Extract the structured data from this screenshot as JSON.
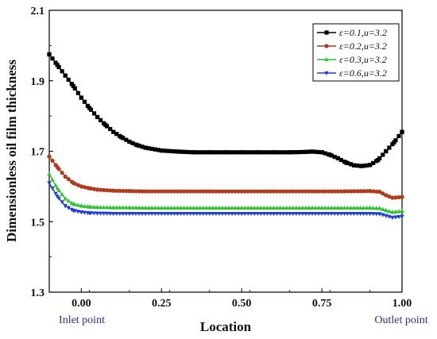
{
  "chart_data": {
    "type": "line",
    "title": "",
    "xlabel": "Location",
    "ylabel": "Dimensionless oil film thickness",
    "xlim": [
      -0.1,
      1.0
    ],
    "ylim": [
      1.3,
      2.1
    ],
    "xticks": [
      "0.00",
      "0.25",
      "0.50",
      "0.75",
      "1.00"
    ],
    "xtick_values": [
      0.0,
      0.25,
      0.5,
      0.75,
      1.0
    ],
    "yticks": [
      "1.3",
      "1.5",
      "1.7",
      "1.9",
      "2.1"
    ],
    "ytick_values": [
      1.3,
      1.5,
      1.7,
      1.9,
      2.1
    ],
    "grid": false,
    "legend_position": "top-right",
    "annotations": [
      {
        "text": "Inlet point",
        "x": 0.0
      },
      {
        "text": "Outlet point",
        "x": 1.0
      }
    ],
    "series": [
      {
        "name": "ε=0.1,u=3.2",
        "color": "#000000",
        "marker": "square",
        "x": [
          -0.1,
          -0.075,
          -0.05,
          -0.025,
          0.0,
          0.025,
          0.05,
          0.075,
          0.1,
          0.125,
          0.15,
          0.175,
          0.2,
          0.25,
          0.3,
          0.35,
          0.4,
          0.45,
          0.5,
          0.55,
          0.6,
          0.65,
          0.7,
          0.72,
          0.75,
          0.775,
          0.8,
          0.825,
          0.85,
          0.875,
          0.9,
          0.925,
          0.95,
          0.975,
          1.0
        ],
        "y": [
          1.975,
          1.945,
          1.915,
          1.885,
          1.852,
          1.823,
          1.797,
          1.775,
          1.755,
          1.74,
          1.727,
          1.717,
          1.71,
          1.702,
          1.699,
          1.697,
          1.697,
          1.697,
          1.697,
          1.697,
          1.697,
          1.697,
          1.698,
          1.699,
          1.697,
          1.69,
          1.68,
          1.668,
          1.66,
          1.658,
          1.661,
          1.675,
          1.7,
          1.725,
          1.755
        ]
      },
      {
        "name": "ε=0.2,u=3.2",
        "color": "#b03a1e",
        "marker": "circle",
        "x": [
          -0.1,
          -0.075,
          -0.05,
          -0.025,
          0.0,
          0.025,
          0.05,
          0.1,
          0.15,
          0.2,
          0.3,
          0.4,
          0.5,
          0.6,
          0.7,
          0.8,
          0.9,
          0.93,
          0.95,
          0.97,
          1.0
        ],
        "y": [
          1.685,
          1.655,
          1.628,
          1.61,
          1.6,
          1.595,
          1.591,
          1.588,
          1.587,
          1.586,
          1.586,
          1.586,
          1.586,
          1.586,
          1.586,
          1.586,
          1.587,
          1.585,
          1.575,
          1.568,
          1.57
        ]
      },
      {
        "name": "ε=0.3,u=3.2",
        "color": "#2ec42e",
        "marker": "triangle-up",
        "x": [
          -0.1,
          -0.075,
          -0.05,
          -0.025,
          0.0,
          0.025,
          0.05,
          0.1,
          0.15,
          0.2,
          0.3,
          0.4,
          0.5,
          0.6,
          0.7,
          0.8,
          0.9,
          0.93,
          0.95,
          0.97,
          1.0
        ],
        "y": [
          1.635,
          1.595,
          1.565,
          1.55,
          1.545,
          1.542,
          1.541,
          1.54,
          1.54,
          1.539,
          1.539,
          1.539,
          1.539,
          1.539,
          1.539,
          1.539,
          1.539,
          1.538,
          1.532,
          1.527,
          1.53
        ]
      },
      {
        "name": "ε=0.6,u=3.2",
        "color": "#1f3fd6",
        "marker": "triangle-down",
        "x": [
          -0.1,
          -0.075,
          -0.05,
          -0.025,
          0.0,
          0.025,
          0.05,
          0.1,
          0.15,
          0.2,
          0.3,
          0.4,
          0.5,
          0.6,
          0.7,
          0.8,
          0.9,
          0.93,
          0.95,
          0.97,
          1.0
        ],
        "y": [
          1.61,
          1.572,
          1.545,
          1.532,
          1.527,
          1.525,
          1.524,
          1.523,
          1.523,
          1.523,
          1.523,
          1.523,
          1.523,
          1.523,
          1.523,
          1.523,
          1.523,
          1.522,
          1.517,
          1.512,
          1.515
        ]
      }
    ]
  }
}
